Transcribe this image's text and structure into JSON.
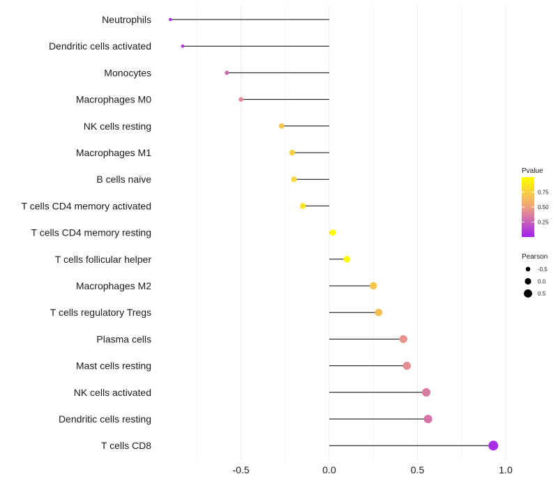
{
  "chart_data": {
    "type": "lollipop",
    "title": "",
    "xlabel": "",
    "ylabel": "",
    "xlim": [
      -0.9,
      1.0
    ],
    "x_ticks": [
      -0.5,
      0.0,
      0.5,
      1.0
    ],
    "x_tick_labels": [
      "-0.5",
      "0.0",
      "0.5",
      "1.0"
    ],
    "baseline": 0,
    "grid": true,
    "categories": [
      "Neutrophils",
      "Dendritic cells activated",
      "Monocytes",
      "Macrophages M0",
      "NK cells resting",
      "Macrophages M1",
      "B cells naive",
      "T cells CD4 memory activated",
      "T cells CD4 memory resting",
      "T cells follicular helper",
      "Macrophages M2",
      "T cells regulatory  Tregs",
      "Plasma cells",
      "Mast cells resting",
      "NK cells activated",
      "Dendritic cells resting",
      "T cells CD8"
    ],
    "values": [
      -0.9,
      -0.83,
      -0.58,
      -0.5,
      -0.27,
      -0.21,
      -0.2,
      -0.15,
      0.02,
      0.1,
      0.25,
      0.28,
      0.42,
      0.44,
      0.55,
      0.56,
      0.93
    ],
    "pvalues": [
      0.05,
      0.1,
      0.3,
      0.4,
      0.7,
      0.75,
      0.78,
      0.85,
      0.97,
      0.96,
      0.7,
      0.65,
      0.45,
      0.42,
      0.35,
      0.33,
      0.05
    ],
    "legend_color": {
      "title": "Pvalue",
      "ticks": [
        0.75,
        0.5,
        0.25
      ],
      "tick_labels": [
        "0.75",
        "0.50",
        "0.25"
      ],
      "range": [
        0.0,
        1.0
      ],
      "low_color": "#a020f0",
      "mid_color": "#f0a080",
      "high_color": "#ffff00"
    },
    "legend_size": {
      "title": "Pearson",
      "values": [
        -0.5,
        0.0,
        0.5
      ],
      "labels": [
        "-0.5",
        "0.0",
        "0.5"
      ]
    },
    "legend_position": "right"
  }
}
